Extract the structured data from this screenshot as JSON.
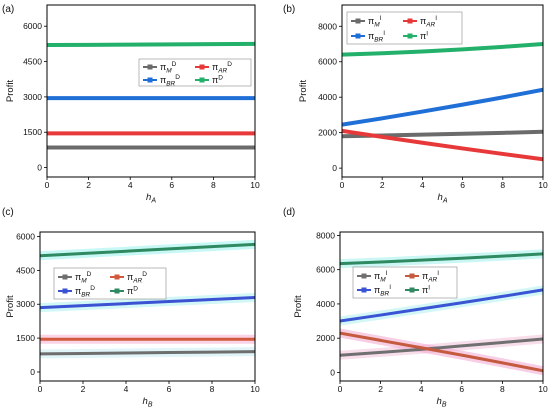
{
  "chart_data": [
    {
      "type": "line",
      "panel_label": "(a)",
      "xlabel": {
        "base": "h",
        "sub": "A"
      },
      "ylabel": "Profit",
      "xlim": [
        0,
        10
      ],
      "ylim": [
        -400,
        6900
      ],
      "xticks": [
        0,
        2,
        4,
        6,
        8,
        10
      ],
      "yticks": [
        0,
        1500,
        3000,
        4500,
        6000
      ],
      "grid": false,
      "legend": "center-right",
      "x": [
        0,
        2,
        4,
        6,
        8,
        10
      ],
      "series": [
        {
          "name": {
            "base": "π",
            "sub": "M",
            "sup": "D"
          },
          "color": "#6b6b6b",
          "values": [
            850,
            850,
            850,
            850,
            850,
            850
          ]
        },
        {
          "name": {
            "base": "π",
            "sub": "AR",
            "sup": "D"
          },
          "color": "#e8393a",
          "values": [
            1450,
            1450,
            1450,
            1450,
            1450,
            1450
          ]
        },
        {
          "name": {
            "base": "π",
            "sub": "BR",
            "sup": "D"
          },
          "color": "#1f6fd6",
          "values": [
            2950,
            2950,
            2950,
            2950,
            2950,
            2950
          ]
        },
        {
          "name": {
            "base": "π",
            "sup": "D"
          },
          "color": "#22b06a",
          "values": [
            5200,
            5210,
            5220,
            5230,
            5240,
            5250
          ]
        }
      ]
    },
    {
      "type": "line",
      "panel_label": "(b)",
      "xlabel": {
        "base": "h",
        "sub": "A"
      },
      "ylabel": "Profit",
      "xlim": [
        0,
        10
      ],
      "ylim": [
        -500,
        9200
      ],
      "xticks": [
        0,
        2,
        4,
        6,
        8,
        10
      ],
      "yticks": [
        0,
        2000,
        4000,
        6000,
        8000
      ],
      "grid": false,
      "legend": "upper-left",
      "x": [
        0,
        2,
        4,
        6,
        8,
        10
      ],
      "series": [
        {
          "name": {
            "base": "π",
            "sub": "M",
            "sup": "I"
          },
          "color": "#6b6b6b",
          "values": [
            1800,
            1840,
            1890,
            1940,
            1990,
            2050
          ]
        },
        {
          "name": {
            "base": "π",
            "sub": "AR",
            "sup": "I"
          },
          "color": "#e8393a",
          "values": [
            2100,
            1760,
            1430,
            1110,
            800,
            500
          ]
        },
        {
          "name": {
            "base": "π",
            "sub": "BR",
            "sup": "I"
          },
          "color": "#1f6fd6",
          "values": [
            2450,
            2810,
            3190,
            3580,
            3990,
            4420
          ]
        },
        {
          "name": {
            "base": "π",
            "sup": "I"
          },
          "color": "#22b06a",
          "values": [
            6400,
            6480,
            6580,
            6700,
            6840,
            7000
          ]
        }
      ]
    },
    {
      "type": "line",
      "panel_label": "(c)",
      "xlabel": {
        "base": "h",
        "sub": "B"
      },
      "ylabel": "Profit",
      "xlim": [
        0,
        10
      ],
      "ylim": [
        -400,
        6200
      ],
      "xticks": [
        0,
        2,
        4,
        6,
        8,
        10
      ],
      "yticks": [
        0,
        1500,
        3000,
        4500,
        6000
      ],
      "grid": false,
      "legend": "upper-left",
      "x": [
        0,
        2,
        4,
        6,
        8,
        10
      ],
      "series": [
        {
          "name": {
            "base": "π",
            "sub": "M",
            "sup": "D"
          },
          "color": "#6e6e6e",
          "glow": "#cdeff3",
          "values": [
            800,
            820,
            840,
            860,
            880,
            900
          ]
        },
        {
          "name": {
            "base": "π",
            "sub": "AR",
            "sup": "D"
          },
          "color": "#d25a3c",
          "glow": "#f6b6d6",
          "values": [
            1450,
            1450,
            1450,
            1450,
            1450,
            1450
          ]
        },
        {
          "name": {
            "base": "π",
            "sub": "BR",
            "sup": "D"
          },
          "color": "#3b52d2",
          "glow": "#b3f2f2",
          "values": [
            2850,
            2940,
            3030,
            3120,
            3210,
            3300
          ]
        },
        {
          "name": {
            "base": "π",
            "sup": "D"
          },
          "color": "#2f8a62",
          "glow": "#a3f3ee",
          "values": [
            5150,
            5250,
            5350,
            5450,
            5550,
            5650
          ]
        }
      ]
    },
    {
      "type": "line",
      "panel_label": "(d)",
      "xlabel": {
        "base": "h",
        "sub": "B"
      },
      "ylabel": "Profit",
      "xlim": [
        0,
        10
      ],
      "ylim": [
        -500,
        8200
      ],
      "xticks": [
        0,
        2,
        4,
        6,
        8,
        10
      ],
      "yticks": [
        0,
        2000,
        4000,
        6000,
        8000
      ],
      "grid": false,
      "legend": "center-left",
      "x": [
        0,
        2,
        4,
        6,
        8,
        10
      ],
      "series": [
        {
          "name": {
            "base": "π",
            "sub": "M",
            "sup": "I"
          },
          "color": "#707070",
          "glow": "#f3c6de",
          "values": [
            1000,
            1170,
            1350,
            1550,
            1750,
            1950
          ]
        },
        {
          "name": {
            "base": "π",
            "sub": "AR",
            "sup": "I"
          },
          "color": "#c45a3e",
          "glow": "#f4aed4",
          "values": [
            2300,
            1870,
            1440,
            1010,
            560,
            100
          ]
        },
        {
          "name": {
            "base": "π",
            "sub": "BR",
            "sup": "I"
          },
          "color": "#3a55d3",
          "glow": "#b5f1f1",
          "values": [
            3000,
            3350,
            3710,
            4070,
            4440,
            4820
          ]
        },
        {
          "name": {
            "base": "π",
            "sup": "I"
          },
          "color": "#2f8a62",
          "glow": "#a6f2ed",
          "values": [
            6350,
            6450,
            6560,
            6670,
            6790,
            6920
          ]
        }
      ]
    }
  ]
}
